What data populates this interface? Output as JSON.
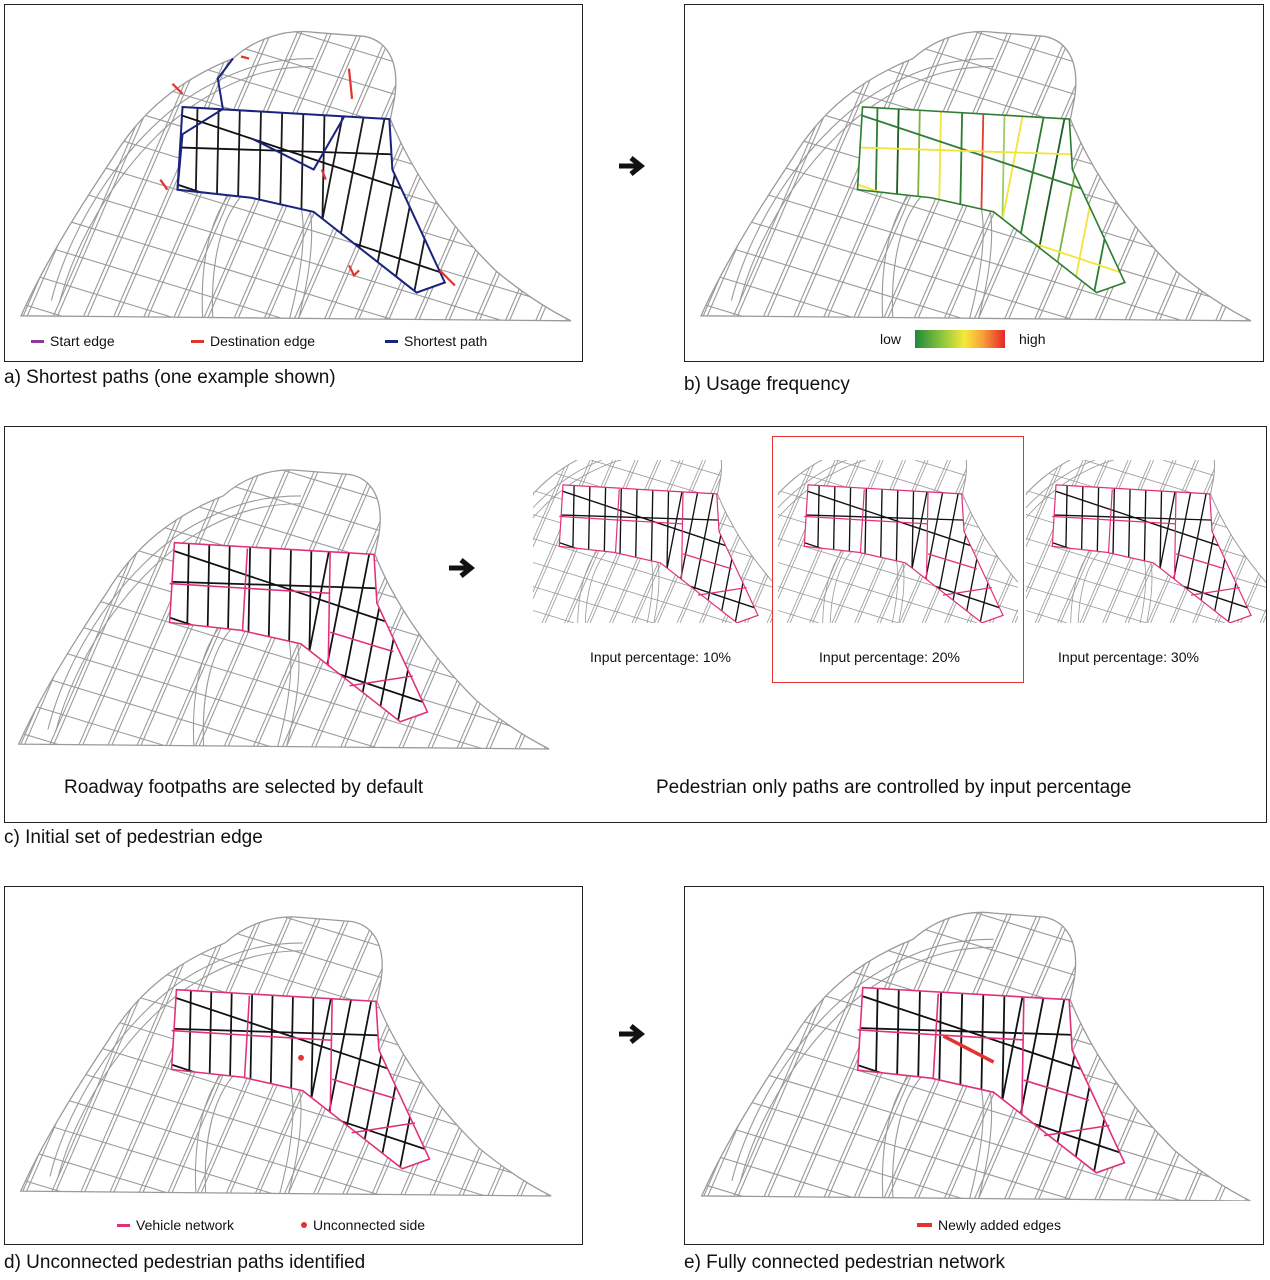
{
  "panel_a": {
    "caption": "a) Shortest paths (one example shown)",
    "legend": [
      {
        "label": "Start edge",
        "color": "#8e3a99"
      },
      {
        "label": "Destination edge",
        "color": "#e3342f"
      },
      {
        "label": "Shortest path",
        "color": "#1a237e"
      }
    ]
  },
  "panel_b": {
    "caption": "b) Usage frequency",
    "legend_low": "low",
    "legend_high": "high"
  },
  "panel_c": {
    "caption": "c) Initial set of pedestrian edge",
    "left_text": "Roadway footpaths are selected by default",
    "right_text": "Pedestrian only paths are controlled by input percentage",
    "options": [
      {
        "label": "Input percentage: 10%",
        "selected": false
      },
      {
        "label": "Input percentage: 20%",
        "selected": true
      },
      {
        "label": "Input percentage: 30%",
        "selected": false
      }
    ]
  },
  "panel_d": {
    "caption": "d) Unconnected pedestrian paths identified",
    "legend": [
      {
        "label": "Vehicle network",
        "color": "#e0307a"
      },
      {
        "label": "Unconnected side",
        "color": "#e3342f"
      }
    ]
  },
  "panel_e": {
    "caption": "e) Fully connected pedestrian network",
    "legend": [
      {
        "label": "Newly added edges",
        "color": "#e3342f"
      }
    ]
  },
  "colors": {
    "street": "#9a9a9a",
    "pedestrian": "#111111",
    "vehicle": "#e0307a",
    "path": "#1a237e",
    "accent": "#e3342f"
  }
}
